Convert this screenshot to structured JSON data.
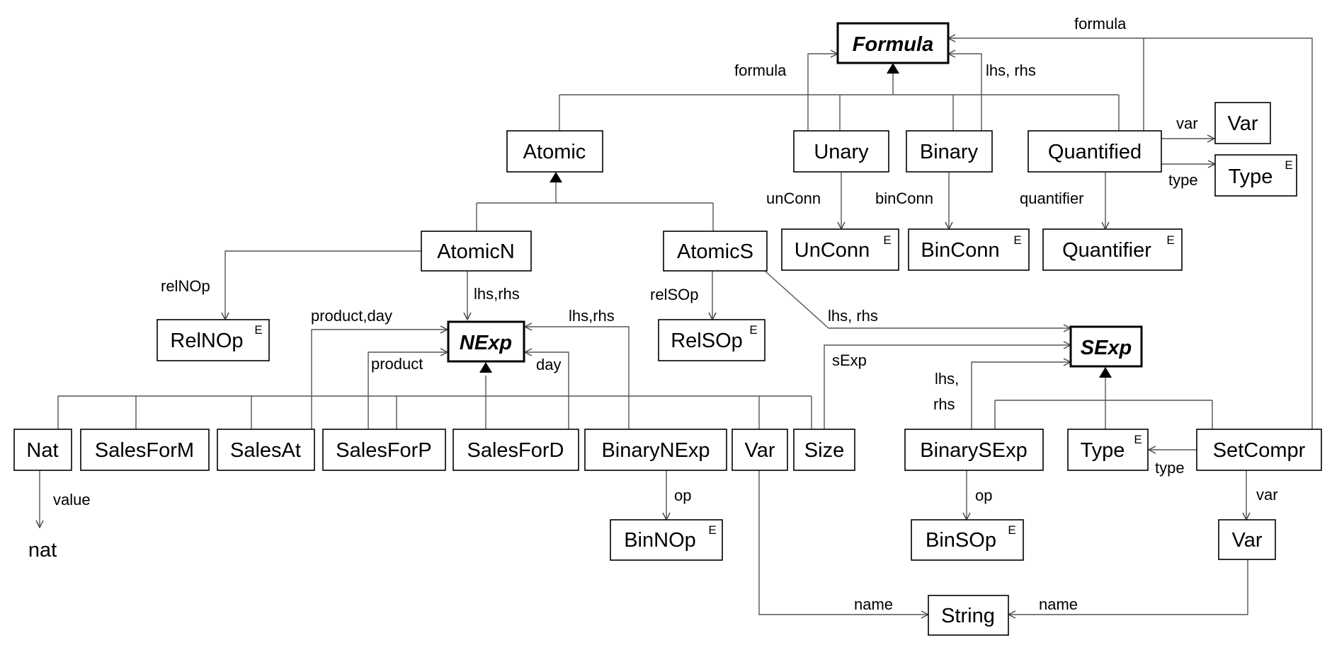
{
  "classes": {
    "formula": "Formula",
    "atomic": "Atomic",
    "unary": "Unary",
    "binary": "Binary",
    "quantified": "Quantified",
    "var_q": "Var",
    "type_q": "Type",
    "unconn": "UnConn",
    "binconn": "BinConn",
    "quantifier": "Quantifier",
    "atomicn": "AtomicN",
    "atomics": "AtomicS",
    "relnop": "RelNOp",
    "nexp": "NExp",
    "relsop": "RelSOp",
    "sexp": "SExp",
    "nat": "Nat",
    "salesform": "SalesForM",
    "salesat": "SalesAt",
    "salesforp": "SalesForP",
    "salesford": "SalesForD",
    "binarynexp": "BinaryNExp",
    "var_n": "Var",
    "size": "Size",
    "binarysexp": "BinarySExp",
    "type_s": "Type",
    "setcompr": "SetCompr",
    "binnop": "BinNOp",
    "binsop": "BinSOp",
    "var_s": "Var",
    "string": "String"
  },
  "enum_marker": "E",
  "labels": {
    "formula_top": "formula",
    "formula_unary": "formula",
    "lhs_rhs_binary": "lhs, rhs",
    "var_quantified": "var",
    "type_quantified": "type",
    "unconn": "unConn",
    "binconn": "binConn",
    "quantifier": "quantifier",
    "relnop": "relNOp",
    "lhs_rhs_atomicn": "lhs,rhs",
    "relsop": "relSOp",
    "lhs_rhs_atomics": "lhs, rhs",
    "product_day": "product,day",
    "product": "product",
    "day": "day",
    "lhs_rhs_binarynexp": "lhs,rhs",
    "sexp": "sExp",
    "lhs_sexp": "lhs,",
    "rhs_sexp": "rhs",
    "value": "value",
    "op_n": "op",
    "op_s": "op",
    "type_setcompr": "type",
    "var_setcompr": "var",
    "name_left": "name",
    "name_right": "name"
  },
  "primitive": "nat"
}
